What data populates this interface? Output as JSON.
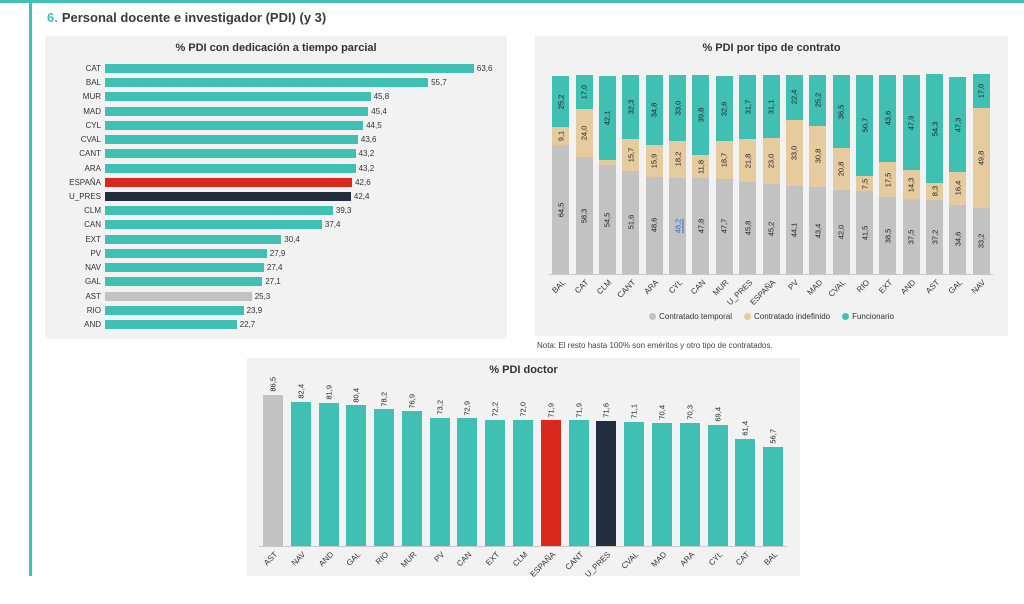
{
  "page": {
    "header": {
      "number": "6.",
      "title": "Personal docente e investigador (PDI) (y 3)"
    }
  },
  "colors": {
    "teal": "#40bfb3",
    "red": "#d9281e",
    "navy": "#222d3d",
    "gray": "#c2c2c2",
    "tan": "#e6cb9f",
    "link": "#2b6cc4"
  },
  "chart_data": [
    {
      "type": "bar",
      "orientation": "horizontal",
      "title": "% PDI con dedicación a tiempo parcial",
      "xlim": [
        0,
        70
      ],
      "grid": false,
      "categories": [
        "CAT",
        "BAL",
        "MUR",
        "MAD",
        "CYL",
        "CVAL",
        "CANT",
        "ARA",
        "ESPAÑA",
        "U_PRES",
        "CLM",
        "CAN",
        "EXT",
        "PV",
        "NAV",
        "GAL",
        "AST",
        "RIO",
        "AND"
      ],
      "values": [
        63.6,
        55.7,
        45.8,
        45.4,
        44.5,
        43.6,
        43.2,
        43.2,
        42.6,
        42.4,
        39.3,
        37.4,
        30.4,
        27.9,
        27.4,
        27.1,
        25.3,
        23.9,
        22.7
      ],
      "value_labels": [
        "63,6",
        "55,7",
        "45,8",
        "45,4",
        "44,5",
        "43,6",
        "43,2",
        "43,2",
        "42,6",
        "42,4",
        "39,3",
        "37,4",
        "30,4",
        "27,9",
        "27,4",
        "27,1",
        "25,3",
        "23,9",
        "22,7"
      ],
      "bar_color_keys": [
        "teal",
        "teal",
        "teal",
        "teal",
        "teal",
        "teal",
        "teal",
        "teal",
        "red",
        "navy",
        "teal",
        "teal",
        "teal",
        "teal",
        "teal",
        "teal",
        "gray",
        "teal",
        "teal"
      ]
    },
    {
      "type": "bar",
      "stacked": true,
      "title": "% PDI por tipo de contrato",
      "ylim": [
        0,
        100
      ],
      "grid": false,
      "legend_position": "bottom",
      "categories": [
        "BAL",
        "CAT",
        "CLM",
        "CANT",
        "ARA",
        "CYL",
        "CAN",
        "MUR",
        "U_PRES",
        "ESPAÑA",
        "PV",
        "MAD",
        "CVAL",
        "RIO",
        "EXT",
        "AND",
        "AST",
        "GAL",
        "NAV"
      ],
      "series": [
        {
          "name": "Contratado temporal",
          "color_key": "gray",
          "values": [
            64.5,
            58.3,
            54.5,
            51.6,
            48.6,
            48.2,
            47.8,
            47.7,
            45.8,
            45.2,
            44.1,
            43.4,
            42.0,
            41.5,
            38.5,
            37.5,
            37.2,
            34.6,
            33.2
          ],
          "labels": [
            "64,5",
            "58,3",
            "54,5",
            "51,6",
            "48,6",
            "48,2",
            "47,8",
            "47,7",
            "45,8",
            "45,2",
            "44,1",
            "43,4",
            "42,0",
            "41,5",
            "38,5",
            "37,5",
            "37,2",
            "34,6",
            "33,2"
          ],
          "link_label_index": 5
        },
        {
          "name": "Contratado indefinido",
          "color_key": "tan",
          "values": [
            9.1,
            24.0,
            2.5,
            15.7,
            15.9,
            18.2,
            11.8,
            18.7,
            21.8,
            23.0,
            33.0,
            30.8,
            20.8,
            7.5,
            17.5,
            14.3,
            8.3,
            16.4,
            49.8
          ],
          "labels": [
            "9,1",
            "24,0",
            "",
            "15,7",
            "15,9",
            "18,2",
            "11,8",
            "18,7",
            "21,8",
            "23,0",
            "33,0",
            "30,8",
            "20,8",
            "7,5",
            "17,5",
            "14,3",
            "8,3",
            "16,4",
            "49,8"
          ]
        },
        {
          "name": "Funcionario",
          "color_key": "teal",
          "values": [
            25.2,
            17.0,
            42.1,
            32.3,
            34.8,
            33.0,
            39.8,
            32.6,
            31.7,
            31.1,
            22.4,
            25.2,
            36.5,
            50.7,
            43.6,
            47.9,
            54.3,
            47.3,
            17.0
          ],
          "labels": [
            "25,2",
            "17,0",
            "42,1",
            "32,3",
            "34,8",
            "33,0",
            "39,8",
            "32,6",
            "31,7",
            "31,1",
            "22,4",
            "25,2",
            "36,5",
            "50,7",
            "43,6",
            "47,9",
            "54,3",
            "47,3",
            "17,0"
          ]
        }
      ],
      "legend": [
        "Contratado temporal",
        "Contratado indefinido",
        "Funcionario"
      ],
      "note": "Nota: El resto hasta 100% son eméritos y otro tipo de contratados."
    },
    {
      "type": "bar",
      "title": "% PDI doctor",
      "ylim": [
        0,
        100
      ],
      "grid": false,
      "categories": [
        "AST",
        "NAV",
        "AND",
        "GAL",
        "RIO",
        "MUR",
        "PV",
        "CAN",
        "EXT",
        "CLM",
        "ESPAÑA",
        "CANT",
        "U_PRES",
        "CVAL",
        "MAD",
        "ARA",
        "CYL",
        "CAT",
        "BAL"
      ],
      "values": [
        86.5,
        82.4,
        81.9,
        80.4,
        78.2,
        76.9,
        73.2,
        72.9,
        72.2,
        72.0,
        71.9,
        71.9,
        71.6,
        71.1,
        70.4,
        70.3,
        69.4,
        61.4,
        56.7
      ],
      "value_labels": [
        "86,5",
        "82,4",
        "81,9",
        "80,4",
        "78,2",
        "76,9",
        "73,2",
        "72,9",
        "72,2",
        "72,0",
        "71,9",
        "71,9",
        "71,6",
        "71,1",
        "70,4",
        "70,3",
        "69,4",
        "61,4",
        "56,7"
      ],
      "bar_color_keys": [
        "gray",
        "teal",
        "teal",
        "teal",
        "teal",
        "teal",
        "teal",
        "teal",
        "teal",
        "teal",
        "red",
        "teal",
        "navy",
        "teal",
        "teal",
        "teal",
        "teal",
        "teal",
        "teal"
      ]
    }
  ]
}
